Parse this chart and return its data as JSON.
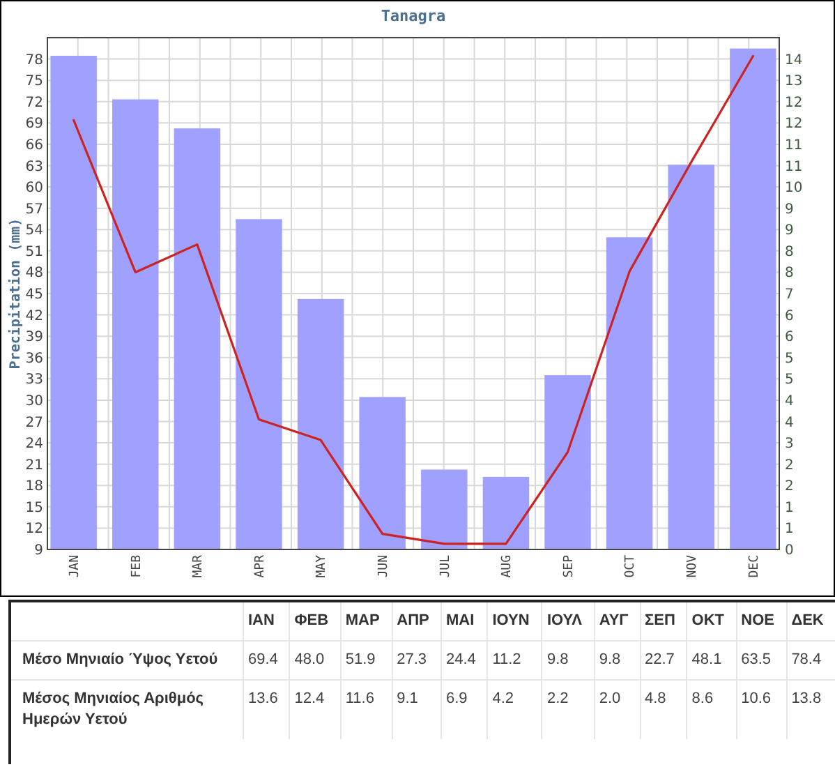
{
  "chart_data": [
    {
      "type": "bar",
      "title": "Tanagra",
      "ylabel": "Precipitation (mm)",
      "categories": [
        "JAN",
        "FEB",
        "MAR",
        "APR",
        "MAY",
        "JUN",
        "JUL",
        "AUG",
        "SEP",
        "OCT",
        "NOV",
        "DEC"
      ],
      "series": [
        {
          "type": "bar",
          "axis": "y2",
          "color": "#a0a0ff",
          "values": [
            13.6,
            12.4,
            11.6,
            9.1,
            6.9,
            4.2,
            2.2,
            2.0,
            4.8,
            8.6,
            10.6,
            13.8
          ]
        },
        {
          "type": "line",
          "axis": "y",
          "color": "#cc2222",
          "values": [
            69.4,
            48.0,
            51.9,
            27.3,
            24.4,
            11.2,
            9.8,
            9.8,
            22.7,
            48.1,
            63.5,
            78.4
          ]
        }
      ],
      "ylim": [
        9,
        81
      ],
      "yticks": [
        9,
        12,
        15,
        18,
        21,
        24,
        27,
        30,
        33,
        36,
        39,
        42,
        45,
        48,
        51,
        54,
        57,
        60,
        63,
        66,
        69,
        72,
        75,
        78
      ],
      "y2lim": [
        0,
        14.1
      ],
      "y2ticks": [
        0,
        {
          "value": 0.59,
          "label": "1"
        },
        {
          "value": 1.17,
          "label": "1"
        },
        {
          "value": 1.76,
          "label": "2"
        },
        {
          "value": 2.35,
          "label": "2"
        },
        {
          "value": 2.94,
          "label": "3"
        },
        {
          "value": 3.52,
          "label": "4"
        },
        {
          "value": 4.11,
          "label": "4"
        },
        {
          "value": 4.7,
          "label": "5"
        },
        {
          "value": 5.29,
          "label": "5"
        },
        {
          "value": 5.87,
          "label": "6"
        },
        {
          "value": 6.46,
          "label": "6"
        },
        {
          "value": 7.05,
          "label": "7"
        },
        {
          "value": 7.64,
          "label": "8"
        },
        {
          "value": 8.22,
          "label": "8"
        },
        {
          "value": 8.81,
          "label": "9"
        },
        {
          "value": 9.4,
          "label": "9"
        },
        {
          "value": 9.99,
          "label": "10"
        },
        {
          "value": 10.57,
          "label": "11"
        },
        {
          "value": 11.16,
          "label": "11"
        },
        {
          "value": 11.75,
          "label": "12"
        },
        {
          "value": 12.34,
          "label": "12"
        },
        {
          "value": 12.92,
          "label": "13"
        },
        {
          "value": 13.51,
          "label": "14"
        }
      ],
      "grid": true
    },
    {
      "type": "other",
      "categories": [
        "ΙΑΝ",
        "ΦΕΒ",
        "ΜΑΡ",
        "ΑΠΡ",
        "ΜΑΙ",
        "ΙΟΥΝ",
        "ΙΟΥΛ",
        "ΑΥΓ",
        "ΣΕΠ",
        "ΟΚΤ",
        "ΝΟΕ",
        "ΔΕΚ"
      ],
      "series": [
        {
          "name": "Μέσο Μηνιαίο Ύψος Υετού",
          "values": [
            69.4,
            48.0,
            51.9,
            27.3,
            24.4,
            11.2,
            9.8,
            9.8,
            22.7,
            48.1,
            63.5,
            78.4
          ],
          "value_labels": [
            "69.4",
            "48.0",
            "51.9",
            "27.3",
            "24.4",
            "11.2",
            "9.8",
            "9.8",
            "22.7",
            "48.1",
            "63.5",
            "78.4"
          ]
        },
        {
          "name": "Μέσος Μηνιαίος Αριθμός Ημερών Υετού",
          "values": [
            13.6,
            12.4,
            11.6,
            9.1,
            6.9,
            4.2,
            2.2,
            2.0,
            4.8,
            8.6,
            10.6,
            13.8
          ],
          "value_labels": [
            "13.6",
            "12.4",
            "11.6",
            "9.1",
            "6.9",
            "4.2",
            "2.2",
            "2.0",
            "4.8",
            "8.6",
            "10.6",
            "13.8"
          ]
        }
      ]
    }
  ]
}
